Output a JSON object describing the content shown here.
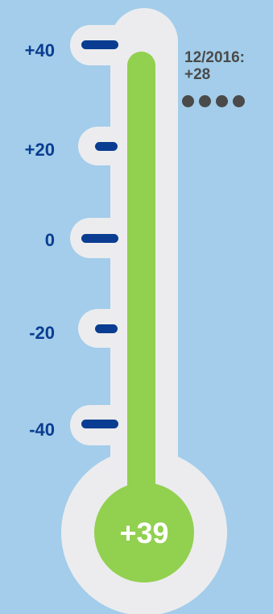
{
  "thermometer": {
    "scale_labels": [
      "+40",
      "+20",
      "0",
      "-20",
      "-40"
    ],
    "scale_min": -40,
    "scale_max": 40,
    "current_value": 39,
    "current_value_label": "+39",
    "note": {
      "date": "12/2016:",
      "value": "+28"
    },
    "note_dot_count": 4
  },
  "colors": {
    "background": "#a3cdea",
    "tube": "#ececee",
    "fill": "#92d050",
    "ticks": "#0a3d91",
    "note_text": "#4a4a4a"
  }
}
